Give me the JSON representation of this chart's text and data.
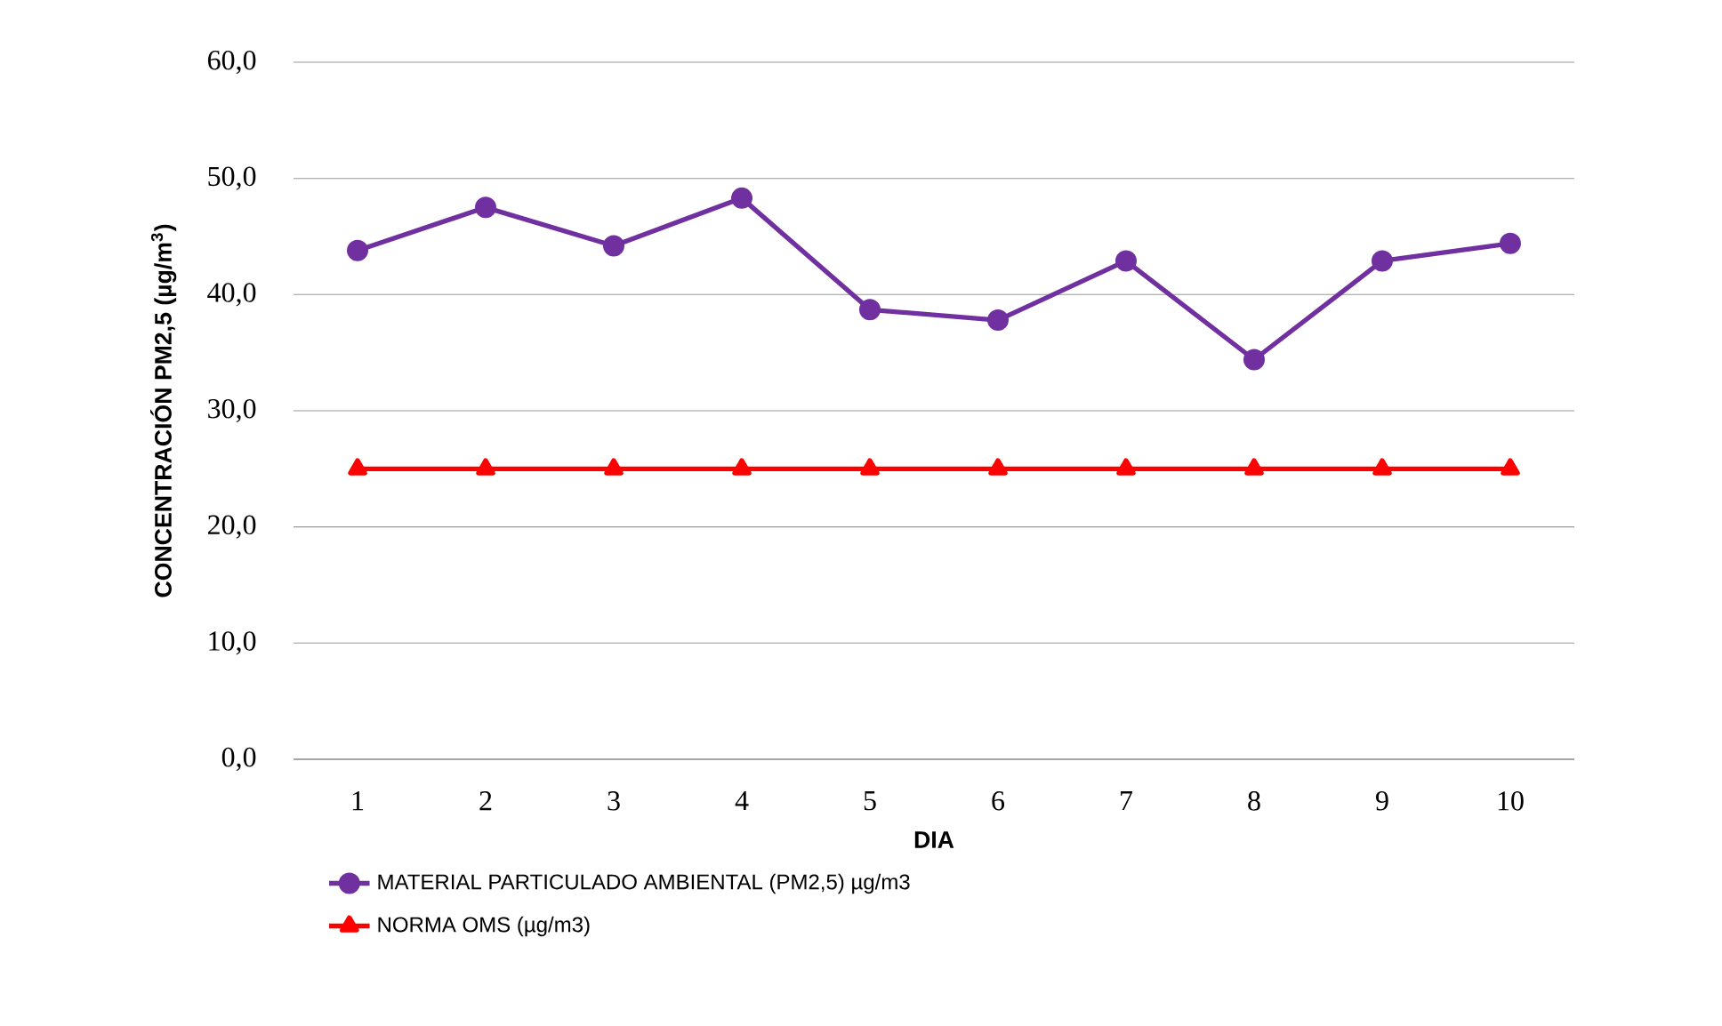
{
  "chart_data": {
    "type": "line",
    "xlabel": "DIA",
    "ylabel": "CONCENTRACIÓN  PM2,5 (µg/m$^{3}$)",
    "categories": [
      "1",
      "2",
      "3",
      "4",
      "5",
      "6",
      "7",
      "8",
      "9",
      "10"
    ],
    "series": [
      {
        "name": "MATERIAL PARTICULADO AMBIENTAL (PM2,5) µg/m3",
        "color": "#7030a0",
        "marker": "circle",
        "values": [
          43.8,
          47.5,
          44.2,
          48.3,
          38.7,
          37.8,
          42.9,
          34.4,
          42.9,
          44.4
        ]
      },
      {
        "name": "NORMA OMS (µg/m3)",
        "color": "#ff0000",
        "marker": "triangle",
        "values": [
          25,
          25,
          25,
          25,
          25,
          25,
          25,
          25,
          25,
          25
        ]
      }
    ],
    "ylim": [
      0,
      60
    ],
    "yticks": [
      {
        "value": 0,
        "label": "0,0"
      },
      {
        "value": 10,
        "label": "10,0"
      },
      {
        "value": 20,
        "label": "20,0"
      },
      {
        "value": 30,
        "label": "30,0"
      },
      {
        "value": 40,
        "label": "40,0"
      },
      {
        "value": 50,
        "label": "50,0"
      },
      {
        "value": 60,
        "label": "60,0"
      }
    ],
    "grid": "y",
    "legend": "bottom",
    "line_style": "solid"
  }
}
